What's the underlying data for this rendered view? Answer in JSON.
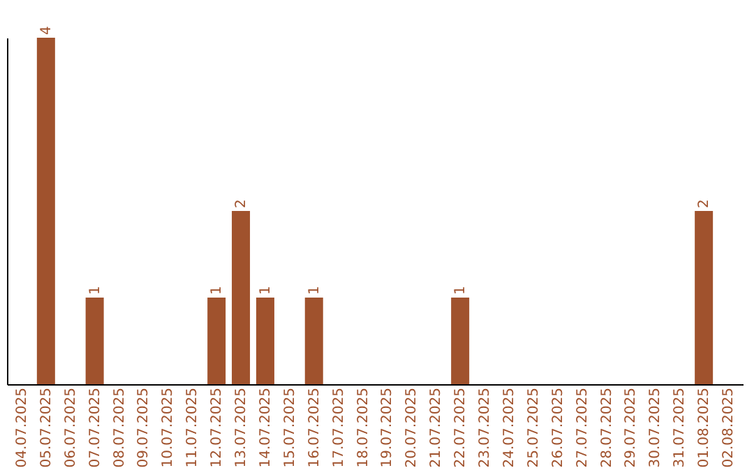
{
  "chart_data": {
    "type": "bar",
    "categories": [
      "04.07.2025",
      "05.07.2025",
      "06.07.2025",
      "07.07.2025",
      "08.07.2025",
      "09.07.2025",
      "10.07.2025",
      "11.07.2025",
      "12.07.2025",
      "13.07.2025",
      "14.07.2025",
      "15.07.2025",
      "16.07.2025",
      "17.07.2025",
      "18.07.2025",
      "19.07.2025",
      "20.07.2025",
      "21.07.2025",
      "22.07.2025",
      "23.07.2025",
      "24.07.2025",
      "25.07.2025",
      "26.07.2025",
      "27.07.2025",
      "28.07.2025",
      "29.07.2025",
      "30.07.2025",
      "31.07.2025",
      "01.08.2025",
      "02.08.2025"
    ],
    "values": [
      0,
      4,
      0,
      1,
      0,
      0,
      0,
      0,
      1,
      2,
      1,
      0,
      1,
      0,
      0,
      0,
      0,
      0,
      1,
      0,
      0,
      0,
      0,
      0,
      0,
      0,
      0,
      0,
      2,
      0
    ],
    "value_labels": [
      null,
      "4",
      null,
      "1",
      null,
      null,
      null,
      null,
      "1",
      "2",
      "1",
      null,
      "1",
      null,
      null,
      null,
      null,
      null,
      "1",
      null,
      null,
      null,
      null,
      null,
      null,
      null,
      null,
      null,
      "2",
      null
    ],
    "color": "#a0522d",
    "tick_labels": "x"
  }
}
